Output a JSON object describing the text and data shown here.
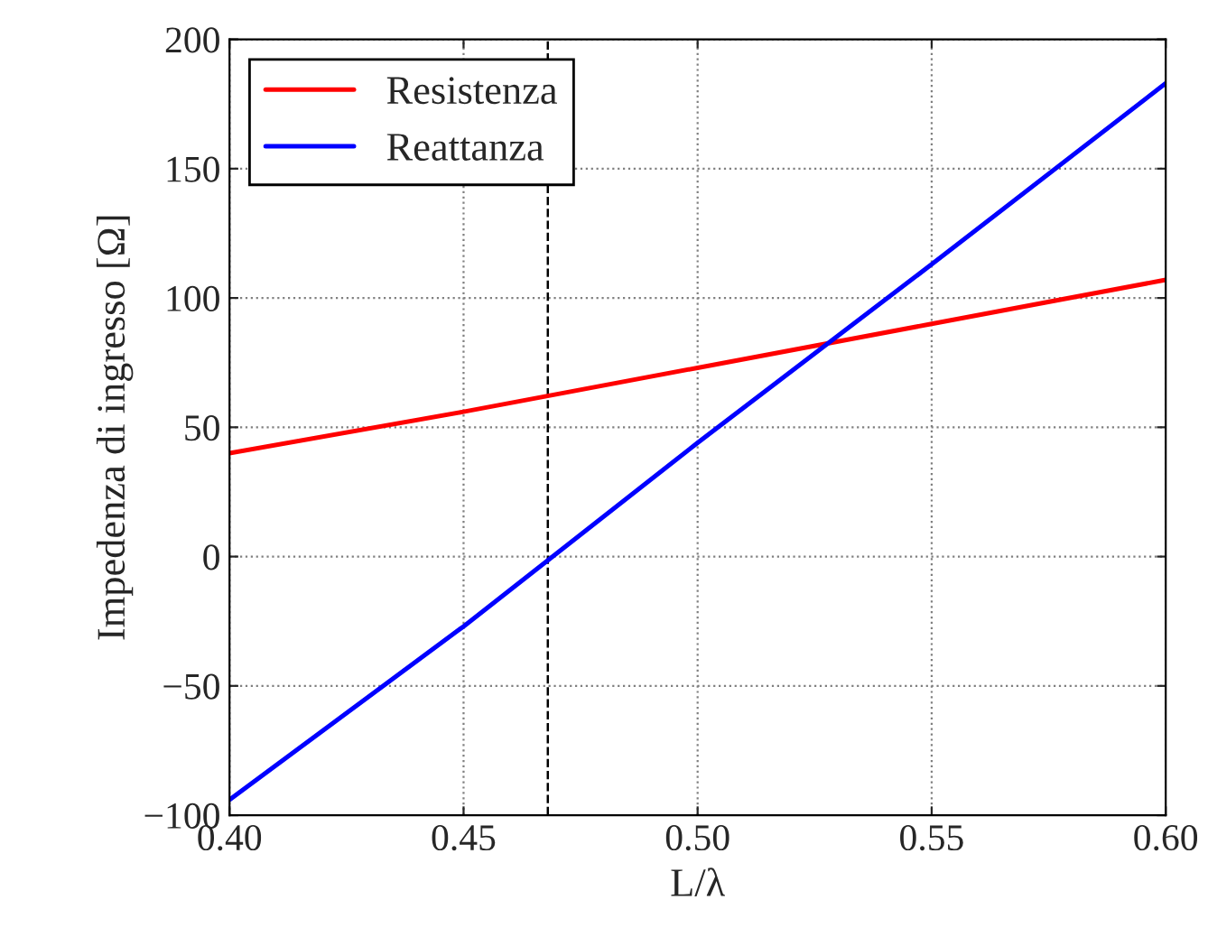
{
  "chart_data": {
    "type": "line",
    "xlabel": "L/λ",
    "ylabel": "Impedenza di ingresso [Ω]",
    "series": [
      {
        "name": "Resistenza",
        "color": "#ff0000",
        "x": [
          0.4,
          0.45,
          0.5,
          0.55,
          0.6
        ],
        "values": [
          40,
          56,
          73,
          90,
          107
        ]
      },
      {
        "name": "Reattanza",
        "color": "#0000ff",
        "x": [
          0.4,
          0.45,
          0.5,
          0.55,
          0.6
        ],
        "values": [
          -94,
          -27,
          44,
          113,
          183
        ]
      }
    ],
    "xlim": [
      0.4,
      0.6
    ],
    "ylim": [
      -100,
      200
    ],
    "xticks": [
      {
        "value": 0.4,
        "label": "0.40"
      },
      {
        "value": 0.45,
        "label": "0.45"
      },
      {
        "value": 0.5,
        "label": "0.50"
      },
      {
        "value": 0.55,
        "label": "0.55"
      },
      {
        "value": 0.6,
        "label": "0.60"
      }
    ],
    "yticks": [
      {
        "value": -100,
        "label": "−100"
      },
      {
        "value": -50,
        "label": "−50"
      },
      0,
      50,
      100,
      150,
      200
    ],
    "ref_lines": [
      {
        "axis": "x",
        "value": 0.468,
        "color": "#000000",
        "line_style": "dashed"
      }
    ],
    "grid": true,
    "legend": "top left",
    "marker": "none",
    "line_style": "solid"
  }
}
